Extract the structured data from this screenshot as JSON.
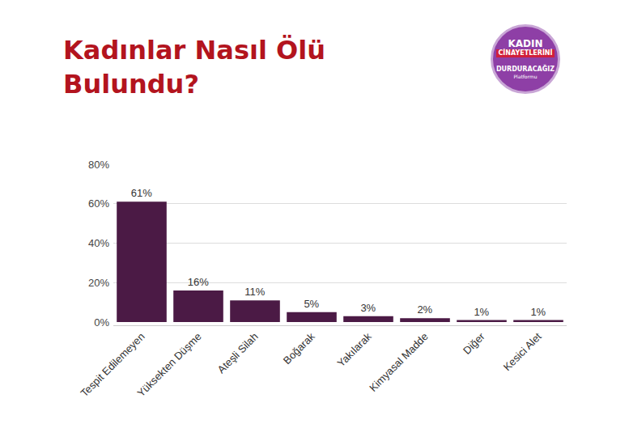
{
  "chart_data": {
    "type": "bar",
    "title": "Kadınlar Nasıl Ölü Bulundu?",
    "categories": [
      "Tespit Edilemeyen",
      "Yüksekten Düşme",
      "Ateşli Silah",
      "Boğarak",
      "Yakılarak",
      "Kimyasal Madde",
      "Diğer",
      "Kesici Alet"
    ],
    "values": [
      61,
      16,
      11,
      5,
      3,
      2,
      1,
      1
    ],
    "value_labels": [
      "61%",
      "16%",
      "11%",
      "5%",
      "3%",
      "2%",
      "1%",
      "1%"
    ],
    "data_labels": true,
    "color": "#4b1a45",
    "ylim": [
      0,
      80
    ],
    "yticks": [
      {
        "value": 0,
        "label": "0%"
      },
      {
        "value": 20,
        "label": "20%"
      },
      {
        "value": 40,
        "label": "40%"
      },
      {
        "value": 60,
        "label": "60%"
      },
      {
        "value": 80,
        "label": "80%"
      }
    ],
    "grid": true
  },
  "logo": {
    "lines": [
      "KADIN",
      "CİNAYETLERİNİ",
      "DURDURACAĞIZ",
      "Platformu"
    ]
  }
}
